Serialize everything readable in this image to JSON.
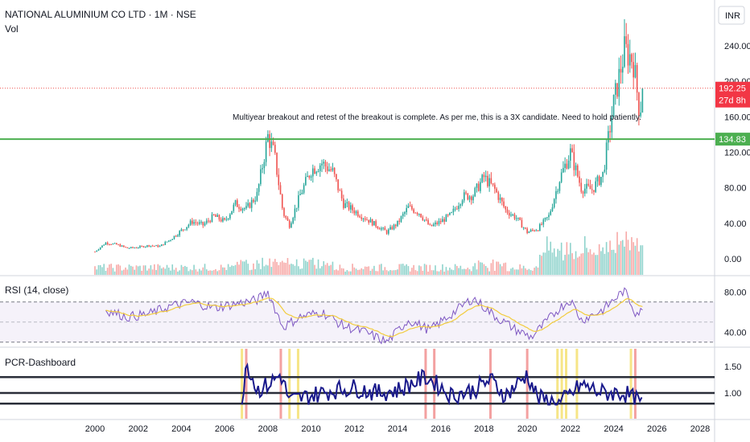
{
  "header": {
    "symbol_title": "NATIONAL ALUMINIUM CO LTD · 1M · NSE",
    "volume_label": "Vol",
    "currency": "INR"
  },
  "price_badges": {
    "last_price": "192.25",
    "countdown": "27d 8h",
    "line_level": "134.83"
  },
  "annotation": "Multiyear breakout and retest of the breakout is complete. As per me, this is a 3X candidate. Need to hold patiently.",
  "panes": {
    "rsi_label": "RSI (14, close)",
    "pcr_label": "PCR-Dashboard"
  },
  "colors": {
    "up": "#26a69a",
    "down": "#ef5350",
    "volume_up": "#8fd3cc",
    "volume_down": "#f7a9a7",
    "horizontal_line": "#4caf50",
    "rsi_line": "#7e57c2",
    "rsi_ma": "#f2cc3d",
    "pcr_line": "#1a1a8c",
    "last_price_badge": "#f23645",
    "level_badge": "#4caf50"
  },
  "chart_data": [
    {
      "type": "candlestick",
      "title": "NATIONAL ALUMINIUM CO LTD · 1M · NSE",
      "x_ticks": [
        "2000",
        "2002",
        "2004",
        "2006",
        "2008",
        "2010",
        "2012",
        "2014",
        "2016",
        "2018",
        "2020",
        "2022",
        "2024",
        "2026",
        "2028"
      ],
      "y_ticks": [
        "0.00",
        "40.00",
        "80.00",
        "120.00",
        "160.00",
        "200.00",
        "240.00"
      ],
      "ylim": [
        -8,
        262
      ],
      "horizontal_line": 134.83,
      "last_price": 192.25,
      "approx_close_path": [
        {
          "t": 2000.0,
          "v": 8
        },
        {
          "t": 2000.5,
          "v": 18
        },
        {
          "t": 2001.0,
          "v": 16
        },
        {
          "t": 2001.5,
          "v": 12
        },
        {
          "t": 2002.0,
          "v": 13
        },
        {
          "t": 2002.5,
          "v": 15
        },
        {
          "t": 2003.0,
          "v": 14
        },
        {
          "t": 2003.5,
          "v": 22
        },
        {
          "t": 2004.0,
          "v": 32
        },
        {
          "t": 2004.5,
          "v": 42
        },
        {
          "t": 2005.0,
          "v": 38
        },
        {
          "t": 2005.5,
          "v": 48
        },
        {
          "t": 2006.0,
          "v": 42
        },
        {
          "t": 2006.5,
          "v": 62
        },
        {
          "t": 2007.0,
          "v": 56
        },
        {
          "t": 2007.5,
          "v": 72
        },
        {
          "t": 2008.0,
          "v": 138
        },
        {
          "t": 2008.3,
          "v": 118
        },
        {
          "t": 2008.7,
          "v": 52
        },
        {
          "t": 2009.0,
          "v": 38
        },
        {
          "t": 2009.5,
          "v": 72
        },
        {
          "t": 2010.0,
          "v": 100
        },
        {
          "t": 2010.5,
          "v": 108
        },
        {
          "t": 2011.0,
          "v": 98
        },
        {
          "t": 2011.5,
          "v": 62
        },
        {
          "t": 2012.0,
          "v": 54
        },
        {
          "t": 2012.5,
          "v": 46
        },
        {
          "t": 2013.0,
          "v": 38
        },
        {
          "t": 2013.5,
          "v": 30
        },
        {
          "t": 2014.0,
          "v": 40
        },
        {
          "t": 2014.5,
          "v": 58
        },
        {
          "t": 2015.0,
          "v": 52
        },
        {
          "t": 2015.5,
          "v": 36
        },
        {
          "t": 2016.0,
          "v": 42
        },
        {
          "t": 2016.5,
          "v": 50
        },
        {
          "t": 2017.0,
          "v": 70
        },
        {
          "t": 2017.5,
          "v": 72
        },
        {
          "t": 2018.0,
          "v": 92
        },
        {
          "t": 2018.5,
          "v": 78
        },
        {
          "t": 2019.0,
          "v": 55
        },
        {
          "t": 2019.5,
          "v": 46
        },
        {
          "t": 2020.0,
          "v": 30
        },
        {
          "t": 2020.5,
          "v": 34
        },
        {
          "t": 2021.0,
          "v": 48
        },
        {
          "t": 2021.5,
          "v": 90
        },
        {
          "t": 2022.0,
          "v": 120
        },
        {
          "t": 2022.5,
          "v": 80
        },
        {
          "t": 2023.0,
          "v": 78
        },
        {
          "t": 2023.5,
          "v": 95
        },
        {
          "t": 2024.0,
          "v": 175
        },
        {
          "t": 2024.5,
          "v": 235
        },
        {
          "t": 2024.9,
          "v": 225
        },
        {
          "t": 2025.2,
          "v": 165
        },
        {
          "t": 2025.4,
          "v": 192.25
        }
      ]
    },
    {
      "type": "line",
      "title": "RSI (14, close)",
      "y_ticks": [
        "40.00",
        "80.00"
      ],
      "ylim": [
        25,
        85
      ],
      "bands": [
        70,
        30
      ],
      "approx_path": [
        {
          "t": 2000.5,
          "v": 62
        },
        {
          "t": 2001.5,
          "v": 55
        },
        {
          "t": 2002.5,
          "v": 58
        },
        {
          "t": 2003.5,
          "v": 66
        },
        {
          "t": 2004.5,
          "v": 70
        },
        {
          "t": 2005.5,
          "v": 64
        },
        {
          "t": 2006.5,
          "v": 68
        },
        {
          "t": 2007.5,
          "v": 72
        },
        {
          "t": 2008.0,
          "v": 80
        },
        {
          "t": 2008.7,
          "v": 45
        },
        {
          "t": 2009.5,
          "v": 55
        },
        {
          "t": 2010.5,
          "v": 60
        },
        {
          "t": 2011.5,
          "v": 46
        },
        {
          "t": 2012.5,
          "v": 40
        },
        {
          "t": 2013.5,
          "v": 30
        },
        {
          "t": 2014.5,
          "v": 52
        },
        {
          "t": 2015.5,
          "v": 42
        },
        {
          "t": 2016.5,
          "v": 58
        },
        {
          "t": 2017.5,
          "v": 74
        },
        {
          "t": 2018.5,
          "v": 56
        },
        {
          "t": 2019.5,
          "v": 42
        },
        {
          "t": 2020.2,
          "v": 35
        },
        {
          "t": 2021.5,
          "v": 64
        },
        {
          "t": 2022.0,
          "v": 72
        },
        {
          "t": 2022.5,
          "v": 52
        },
        {
          "t": 2023.5,
          "v": 62
        },
        {
          "t": 2024.5,
          "v": 82
        },
        {
          "t": 2025.0,
          "v": 60
        },
        {
          "t": 2025.4,
          "v": 60
        }
      ]
    },
    {
      "type": "line",
      "title": "PCR-Dashboard",
      "y_ticks": [
        "1.00",
        "1.50"
      ],
      "ylim": [
        0.68,
        1.68
      ],
      "reference_levels": [
        1.3,
        1.0,
        0.8
      ],
      "approx_path": [
        {
          "t": 2006.8,
          "v": 0.85
        },
        {
          "t": 2007.0,
          "v": 1.6
        },
        {
          "t": 2007.5,
          "v": 1.05
        },
        {
          "t": 2008.0,
          "v": 1.15
        },
        {
          "t": 2008.6,
          "v": 1.35
        },
        {
          "t": 2009.0,
          "v": 0.85
        },
        {
          "t": 2010.0,
          "v": 0.95
        },
        {
          "t": 2011.0,
          "v": 1.05
        },
        {
          "t": 2012.0,
          "v": 1.1
        },
        {
          "t": 2013.0,
          "v": 1.0
        },
        {
          "t": 2014.0,
          "v": 1.05
        },
        {
          "t": 2015.3,
          "v": 1.3
        },
        {
          "t": 2015.7,
          "v": 1.2
        },
        {
          "t": 2016.5,
          "v": 0.95
        },
        {
          "t": 2017.5,
          "v": 1.05
        },
        {
          "t": 2018.3,
          "v": 1.25
        },
        {
          "t": 2019.0,
          "v": 0.95
        },
        {
          "t": 2020.0,
          "v": 1.35
        },
        {
          "t": 2020.5,
          "v": 0.9
        },
        {
          "t": 2021.5,
          "v": 0.8
        },
        {
          "t": 2022.5,
          "v": 1.15
        },
        {
          "t": 2023.5,
          "v": 1.0
        },
        {
          "t": 2024.5,
          "v": 1.0
        },
        {
          "t": 2025.3,
          "v": 0.8
        }
      ],
      "red_markers": [
        2007.0,
        2008.6,
        2015.3,
        2015.7,
        2018.3,
        2020.0,
        2025.0
      ],
      "yellow_markers": [
        2006.8,
        2009.0,
        2009.4,
        2021.4,
        2021.6,
        2021.8,
        2022.3,
        2024.8
      ]
    }
  ]
}
